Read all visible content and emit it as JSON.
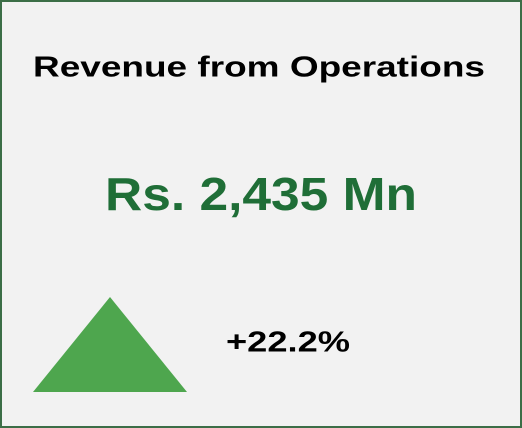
{
  "card": {
    "title": "Revenue from Operations",
    "value": "Rs. 2,435 Mn",
    "change": "+22.2%"
  }
}
